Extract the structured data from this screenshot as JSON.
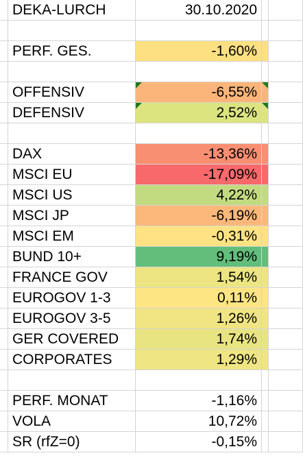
{
  "header": {
    "title": "DEKA-LURCH",
    "date": "30.10.2020"
  },
  "summary": {
    "label": "PERF. GES.",
    "value": "-1,60%",
    "fill": "#fde081"
  },
  "strategies": [
    {
      "label": "OFFENSIV",
      "value": "-6,55%",
      "fill": "#fbb57a",
      "comment": true
    },
    {
      "label": "DEFENSIV",
      "value": "2,52%",
      "fill": "#dce480",
      "comment": true
    }
  ],
  "assets": [
    {
      "label": "DAX",
      "value": "-13,36%",
      "fill": "#f88e72"
    },
    {
      "label": "MSCI EU",
      "value": "-17,09%",
      "fill": "#f8696b"
    },
    {
      "label": "MSCI US",
      "value": "4,22%",
      "fill": "#c3db80"
    },
    {
      "label": "MSCI JP",
      "value": "-6,19%",
      "fill": "#fbb87a"
    },
    {
      "label": "MSCI EM",
      "value": "-0,31%",
      "fill": "#fee283"
    },
    {
      "label": "BUND 10+",
      "value": "9,19%",
      "fill": "#63be7b"
    },
    {
      "label": "FRANCE GOV",
      "value": "1,54%",
      "fill": "#ece582"
    },
    {
      "label": "EUROGOV 1-3",
      "value": "0,11%",
      "fill": "#fee583"
    },
    {
      "label": "EUROGOV 3-5",
      "value": "1,26%",
      "fill": "#f0e582"
    },
    {
      "label": "GER COVERED",
      "value": "1,74%",
      "fill": "#e9e482"
    },
    {
      "label": "CORPORATES",
      "value": "1,29%",
      "fill": "#efe582"
    }
  ],
  "stats": [
    {
      "label": "PERF. MONAT",
      "value": "-1,16%"
    },
    {
      "label": "VOLA",
      "value": "10,72%"
    },
    {
      "label": "SR (rfZ=0)",
      "value": "-0,15%"
    }
  ],
  "colors": {
    "gridline": "#d4d4d4",
    "comment_marker": "#1f7a1f"
  }
}
